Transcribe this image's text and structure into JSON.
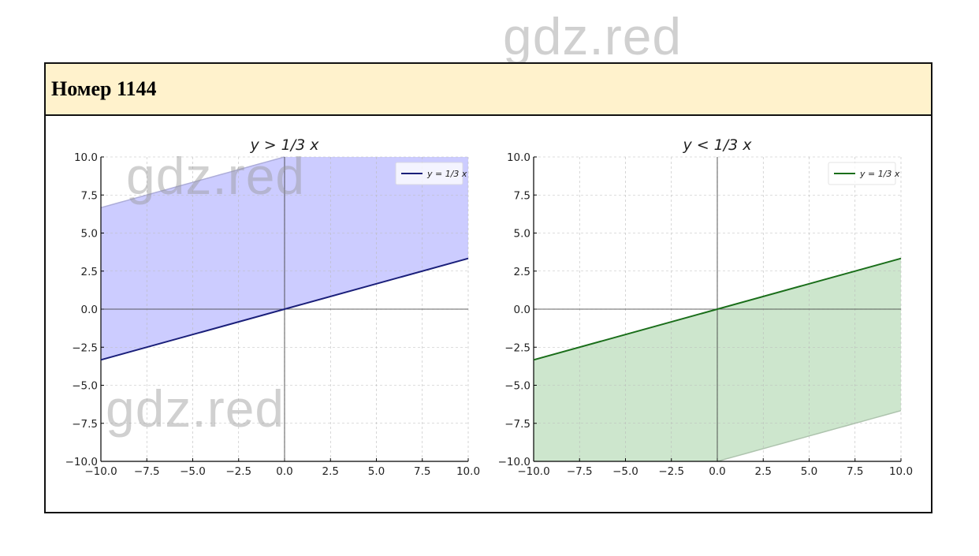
{
  "watermark": "gdz.red",
  "header": {
    "title": "Номер 1144"
  },
  "chart_data": [
    {
      "type": "area",
      "title": "y > 1/3 x",
      "legend": [
        "y = 1/3 x"
      ],
      "legend_placement": "top-right",
      "line": {
        "slope": 0.3333,
        "intercept": 0,
        "color": "#1a1f7a"
      },
      "fill": {
        "between": [
          "y = x/3",
          "y = x/3 + 10"
        ],
        "color": "#ccccff"
      },
      "xlim": [
        -10,
        10
      ],
      "ylim": [
        -10,
        10
      ],
      "xticks": [
        "−10.0",
        "−7.5",
        "−5.0",
        "−2.5",
        "0.0",
        "2.5",
        "5.0",
        "7.5",
        "10.0"
      ],
      "yticks": [
        "−10.0",
        "−7.5",
        "−5.0",
        "−2.5",
        "0.0",
        "2.5",
        "5.0",
        "7.5",
        "10.0"
      ],
      "grid": true
    },
    {
      "type": "area",
      "title": "y < 1/3 x",
      "legend": [
        "y = 1/3 x"
      ],
      "legend_placement": "top-right",
      "line": {
        "slope": 0.3333,
        "intercept": 0,
        "color": "#1a6e1a"
      },
      "fill": {
        "between": [
          "y = x/3 − 10",
          "y = x/3"
        ],
        "color": "#cde6cd"
      },
      "xlim": [
        -10,
        10
      ],
      "ylim": [
        -10,
        10
      ],
      "xticks": [
        "−10.0",
        "−7.5",
        "−5.0",
        "−2.5",
        "0.0",
        "2.5",
        "5.0",
        "7.5",
        "10.0"
      ],
      "yticks": [
        "−10.0",
        "−7.5",
        "−5.0",
        "−2.5",
        "0.0",
        "2.5",
        "5.0",
        "7.5",
        "10.0"
      ],
      "grid": true
    }
  ]
}
